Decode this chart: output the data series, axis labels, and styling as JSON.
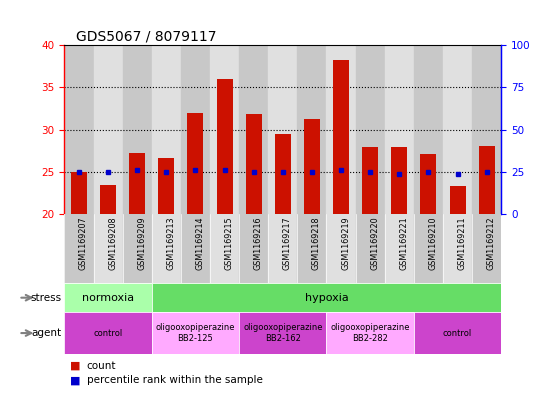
{
  "title": "GDS5067 / 8079117",
  "samples": [
    "GSM1169207",
    "GSM1169208",
    "GSM1169209",
    "GSM1169213",
    "GSM1169214",
    "GSM1169215",
    "GSM1169216",
    "GSM1169217",
    "GSM1169218",
    "GSM1169219",
    "GSM1169220",
    "GSM1169221",
    "GSM1169210",
    "GSM1169211",
    "GSM1169212"
  ],
  "counts": [
    25.0,
    23.5,
    27.3,
    26.7,
    32.0,
    36.0,
    31.8,
    29.5,
    31.3,
    38.2,
    27.9,
    27.9,
    27.1,
    23.3,
    28.1
  ],
  "percentile_ranks": [
    25,
    25,
    26,
    25,
    26,
    26,
    25,
    25,
    25,
    26,
    25,
    24,
    25,
    24,
    25
  ],
  "ylim_left": [
    20,
    40
  ],
  "ylim_right": [
    0,
    100
  ],
  "yticks_left": [
    20,
    25,
    30,
    35,
    40
  ],
  "yticks_right": [
    0,
    25,
    50,
    75,
    100
  ],
  "bar_color": "#cc1100",
  "dot_color": "#0000cc",
  "col_colors": [
    "#c8c8c8",
    "#e0e0e0"
  ],
  "stress_groups": [
    {
      "label": "normoxia",
      "start": 0,
      "end": 3,
      "color": "#aaffaa"
    },
    {
      "label": "hypoxia",
      "start": 3,
      "end": 15,
      "color": "#66dd66"
    }
  ],
  "agent_groups": [
    {
      "label": "control",
      "start": 0,
      "end": 3,
      "color": "#cc44cc"
    },
    {
      "label": "oligooxopiperazine\nBB2-125",
      "start": 3,
      "end": 6,
      "color": "#ffaaff"
    },
    {
      "label": "oligooxopiperazine\nBB2-162",
      "start": 6,
      "end": 9,
      "color": "#cc44cc"
    },
    {
      "label": "oligooxopiperazine\nBB2-282",
      "start": 9,
      "end": 12,
      "color": "#ffaaff"
    },
    {
      "label": "control",
      "start": 12,
      "end": 15,
      "color": "#cc44cc"
    }
  ],
  "grid_lines": [
    25,
    30,
    35
  ]
}
